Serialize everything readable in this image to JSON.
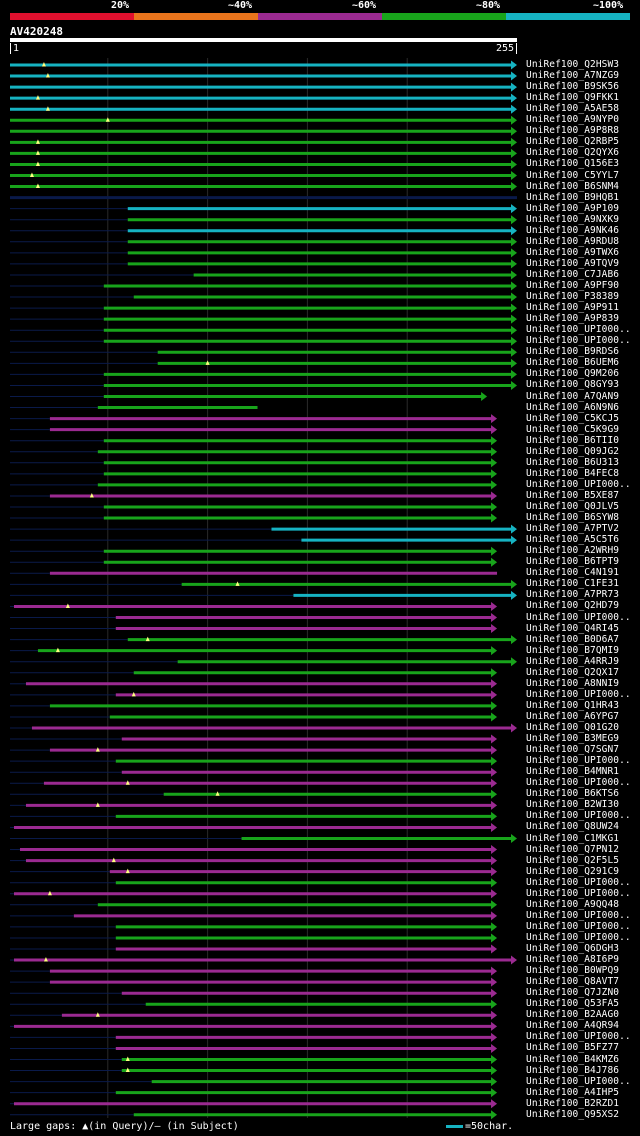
{
  "legend": [
    {
      "label": "20%",
      "color": "#e0102e"
    },
    {
      "label": "~40%",
      "color": "#e8741c"
    },
    {
      "label": "~60%",
      "color": "#9b2a91"
    },
    {
      "label": "~80%",
      "color": "#18a41b"
    },
    {
      "label": "~100%",
      "color": "#16b3c2"
    }
  ],
  "query": {
    "name": "AV420248",
    "start_label": "1",
    "end_label": "255"
  },
  "footer": {
    "text": "Large gaps: ▲(in Query)/— (in Subject)",
    "scale_text": "=50char."
  },
  "chart_data": {
    "type": "alignment",
    "query_length": 255,
    "x_range": [
      1,
      255
    ],
    "grid_positions": [
      50,
      100,
      150,
      200
    ],
    "colors": {
      "purple": "#9b2a91",
      "green": "#18a41b",
      "cyan": "#16b3c2",
      "navy": "#0a1a4a"
    },
    "hits": [
      {
        "name": "UniRef100_Q2HSW3",
        "color": "cyan",
        "start": 1,
        "end": 255,
        "arrow": true,
        "gap": 18
      },
      {
        "name": "UniRef100_A7NZG9",
        "color": "cyan",
        "start": 1,
        "end": 255,
        "arrow": true,
        "gap": 20
      },
      {
        "name": "UniRef100_B9SK56",
        "color": "cyan",
        "start": 1,
        "end": 255,
        "arrow": true
      },
      {
        "name": "UniRef100_Q9FKK1",
        "color": "cyan",
        "start": 1,
        "end": 255,
        "arrow": true,
        "gap": 15
      },
      {
        "name": "UniRef100_A5AE58",
        "color": "cyan",
        "start": 1,
        "end": 255,
        "arrow": true,
        "gap": 20
      },
      {
        "name": "UniRef100_A9NYP0",
        "color": "green",
        "start": 1,
        "end": 255,
        "arrow": true,
        "gap": 50
      },
      {
        "name": "UniRef100_A9P8R8",
        "color": "green",
        "start": 1,
        "end": 255,
        "arrow": true
      },
      {
        "name": "UniRef100_Q2RBP5",
        "color": "green",
        "start": 1,
        "end": 255,
        "arrow": true,
        "gap": 15
      },
      {
        "name": "UniRef100_Q2QYX6",
        "color": "green",
        "start": 1,
        "end": 255,
        "arrow": true,
        "gap": 15
      },
      {
        "name": "UniRef100_Q156E3",
        "color": "green",
        "start": 1,
        "end": 255,
        "arrow": true,
        "gap": 15
      },
      {
        "name": "UniRef100_C5YYL7",
        "color": "green",
        "start": 1,
        "end": 255,
        "arrow": true,
        "gap": 12
      },
      {
        "name": "UniRef100_B6SNM4",
        "color": "green",
        "start": 1,
        "end": 255,
        "arrow": true,
        "gap": 15
      },
      {
        "name": "UniRef100_B9HQB1",
        "color": "navy",
        "start": 1,
        "end": 255
      },
      {
        "name": "UniRef100_A9P109",
        "color": "cyan",
        "start": 60,
        "end": 255,
        "arrow": true
      },
      {
        "name": "UniRef100_A9NXK9",
        "color": "green",
        "start": 60,
        "end": 255,
        "arrow": true
      },
      {
        "name": "UniRef100_A9NK46",
        "color": "cyan",
        "start": 60,
        "end": 255,
        "arrow": true
      },
      {
        "name": "UniRef100_A9RDU8",
        "color": "green",
        "start": 60,
        "end": 255,
        "arrow": true
      },
      {
        "name": "UniRef100_A9TWX6",
        "color": "green",
        "start": 60,
        "end": 255,
        "arrow": true
      },
      {
        "name": "UniRef100_A9TQV9",
        "color": "green",
        "start": 60,
        "end": 255,
        "arrow": true
      },
      {
        "name": "UniRef100_C7JAB6",
        "color": "green",
        "start": 93,
        "end": 255,
        "arrow": true
      },
      {
        "name": "UniRef100_A9PF90",
        "color": "green",
        "start": 48,
        "end": 255,
        "arrow": true
      },
      {
        "name": "UniRef100_P38389",
        "color": "green",
        "start": 63,
        "end": 255,
        "arrow": true
      },
      {
        "name": "UniRef100_A9P911",
        "color": "green",
        "start": 48,
        "end": 255,
        "arrow": true
      },
      {
        "name": "UniRef100_A9P839",
        "color": "green",
        "start": 48,
        "end": 255,
        "arrow": true
      },
      {
        "name": "UniRef100_UPI000..",
        "color": "green",
        "start": 48,
        "end": 255,
        "arrow": true
      },
      {
        "name": "UniRef100_UPI000..",
        "color": "green",
        "start": 48,
        "end": 255,
        "arrow": true
      },
      {
        "name": "UniRef100_B9RDS6",
        "color": "green",
        "start": 75,
        "end": 255,
        "arrow": true
      },
      {
        "name": "UniRef100_B6UEM6",
        "color": "green",
        "start": 75,
        "end": 255,
        "arrow": true,
        "gap": 100
      },
      {
        "name": "UniRef100_Q9M206",
        "color": "green",
        "start": 48,
        "end": 255,
        "arrow": true
      },
      {
        "name": "UniRef100_Q8GY93",
        "color": "green",
        "start": 48,
        "end": 255,
        "arrow": true
      },
      {
        "name": "UniRef100_A7QAN9",
        "color": "green",
        "start": 48,
        "end": 240,
        "arrow": true
      },
      {
        "name": "UniRef100_A6N9N6",
        "color": "green",
        "start": 45,
        "end": 125
      },
      {
        "name": "UniRef100_C5KCJ5",
        "color": "purple",
        "start": 21,
        "end": 245,
        "arrow": true
      },
      {
        "name": "UniRef100_C5K9G9",
        "color": "purple",
        "start": 21,
        "end": 245,
        "arrow": true
      },
      {
        "name": "UniRef100_B6TII0",
        "color": "green",
        "start": 48,
        "end": 245,
        "arrow": true
      },
      {
        "name": "UniRef100_Q09JG2",
        "color": "green",
        "start": 45,
        "end": 245,
        "arrow": true
      },
      {
        "name": "UniRef100_B6U313",
        "color": "green",
        "start": 48,
        "end": 245,
        "arrow": true
      },
      {
        "name": "UniRef100_B4FEC8",
        "color": "green",
        "start": 48,
        "end": 245,
        "arrow": true
      },
      {
        "name": "UniRef100_UPI000..",
        "color": "green",
        "start": 45,
        "end": 245,
        "arrow": true
      },
      {
        "name": "UniRef100_B5XE87",
        "color": "purple",
        "start": 21,
        "end": 245,
        "arrow": true,
        "gap": 42
      },
      {
        "name": "UniRef100_Q0JLV5",
        "color": "green",
        "start": 48,
        "end": 245,
        "arrow": true
      },
      {
        "name": "UniRef100_B6SYW8",
        "color": "green",
        "start": 48,
        "end": 245,
        "arrow": true
      },
      {
        "name": "UniRef100_A7PTV2",
        "color": "cyan",
        "start": 132,
        "end": 255,
        "arrow": true
      },
      {
        "name": "UniRef100_A5C5T6",
        "color": "cyan",
        "start": 147,
        "end": 255,
        "arrow": true
      },
      {
        "name": "UniRef100_A2WRH9",
        "color": "green",
        "start": 48,
        "end": 245,
        "arrow": true
      },
      {
        "name": "UniRef100_B6TPT9",
        "color": "green",
        "start": 48,
        "end": 245,
        "arrow": true
      },
      {
        "name": "UniRef100_C4N191",
        "color": "purple",
        "start": 21,
        "end": 245
      },
      {
        "name": "UniRef100_C1FE31",
        "color": "green",
        "start": 87,
        "end": 255,
        "arrow": true,
        "gap": 115
      },
      {
        "name": "UniRef100_A7PR73",
        "color": "cyan",
        "start": 143,
        "end": 255,
        "arrow": true
      },
      {
        "name": "UniRef100_Q2HD79",
        "color": "purple",
        "start": 3,
        "end": 245,
        "arrow": true,
        "gap": 30
      },
      {
        "name": "UniRef100_UPI000..",
        "color": "purple",
        "start": 54,
        "end": 245,
        "arrow": true
      },
      {
        "name": "UniRef100_Q4RI45",
        "color": "purple",
        "start": 54,
        "end": 245,
        "arrow": true
      },
      {
        "name": "UniRef100_B0D6A7",
        "color": "green",
        "start": 60,
        "end": 255,
        "arrow": true,
        "gap": 70
      },
      {
        "name": "UniRef100_B7QMI9",
        "color": "green",
        "start": 15,
        "end": 245,
        "arrow": true,
        "gap": 25
      },
      {
        "name": "UniRef100_A4RRJ9",
        "color": "green",
        "start": 85,
        "end": 255,
        "arrow": true
      },
      {
        "name": "UniRef100_Q2QX17",
        "color": "green",
        "start": 63,
        "end": 245,
        "arrow": true
      },
      {
        "name": "UniRef100_A8NNI9",
        "color": "purple",
        "start": 9,
        "end": 245,
        "arrow": true
      },
      {
        "name": "UniRef100_UPI000..",
        "color": "purple",
        "start": 54,
        "end": 245,
        "arrow": true,
        "gap": 63
      },
      {
        "name": "UniRef100_Q1HR43",
        "color": "green",
        "start": 21,
        "end": 245,
        "arrow": true
      },
      {
        "name": "UniRef100_A6YPG7",
        "color": "green",
        "start": 51,
        "end": 245,
        "arrow": true
      },
      {
        "name": "UniRef100_Q01G20",
        "color": "purple",
        "start": 12,
        "end": 255,
        "arrow": true
      },
      {
        "name": "UniRef100_B3MEG9",
        "color": "purple",
        "start": 57,
        "end": 245,
        "arrow": true
      },
      {
        "name": "UniRef100_Q7SGN7",
        "color": "purple",
        "start": 21,
        "end": 245,
        "arrow": true,
        "gap": 45
      },
      {
        "name": "UniRef100_UPI000..",
        "color": "green",
        "start": 54,
        "end": 245,
        "arrow": true
      },
      {
        "name": "UniRef100_B4MNR1",
        "color": "purple",
        "start": 57,
        "end": 245,
        "arrow": true
      },
      {
        "name": "UniRef100_UPI000..",
        "color": "purple",
        "start": 18,
        "end": 245,
        "arrow": true,
        "gap": 60
      },
      {
        "name": "UniRef100_B6KTS6",
        "color": "green",
        "start": 78,
        "end": 245,
        "arrow": true,
        "gap": 105
      },
      {
        "name": "UniRef100_B2WI30",
        "color": "purple",
        "start": 9,
        "end": 245,
        "arrow": true,
        "gap": 45
      },
      {
        "name": "UniRef100_UPI000..",
        "color": "green",
        "start": 54,
        "end": 245,
        "arrow": true
      },
      {
        "name": "UniRef100_Q8UW24",
        "color": "purple",
        "start": 3,
        "end": 245,
        "arrow": true
      },
      {
        "name": "UniRef100_C1MKG1",
        "color": "green",
        "start": 117,
        "end": 255,
        "arrow": true
      },
      {
        "name": "UniRef100_Q7PN12",
        "color": "purple",
        "start": 6,
        "end": 245,
        "arrow": true
      },
      {
        "name": "UniRef100_Q2F5L5",
        "color": "purple",
        "start": 9,
        "end": 245,
        "arrow": true,
        "gap": 53
      },
      {
        "name": "UniRef100_Q291C9",
        "color": "purple",
        "start": 51,
        "end": 245,
        "arrow": true,
        "gap": 60
      },
      {
        "name": "UniRef100_UPI000..",
        "color": "green",
        "start": 54,
        "end": 245,
        "arrow": true
      },
      {
        "name": "UniRef100_UPI000..",
        "color": "purple",
        "start": 3,
        "end": 245,
        "arrow": true,
        "gap": 21
      },
      {
        "name": "UniRef100_A9QQ48",
        "color": "green",
        "start": 45,
        "end": 245,
        "arrow": true
      },
      {
        "name": "UniRef100_UPI000..",
        "color": "purple",
        "start": 33,
        "end": 245,
        "arrow": true
      },
      {
        "name": "UniRef100_UPI000..",
        "color": "green",
        "start": 54,
        "end": 245,
        "arrow": true
      },
      {
        "name": "UniRef100_UPI000..",
        "color": "green",
        "start": 54,
        "end": 245,
        "arrow": true
      },
      {
        "name": "UniRef100_Q6DGH3",
        "color": "purple",
        "start": 54,
        "end": 245,
        "arrow": true
      },
      {
        "name": "UniRef100_A8I6P9",
        "color": "purple",
        "start": 3,
        "end": 255,
        "arrow": true,
        "gap": 19
      },
      {
        "name": "UniRef100_B0WPQ9",
        "color": "purple",
        "start": 21,
        "end": 245,
        "arrow": true
      },
      {
        "name": "UniRef100_Q8AVT7",
        "color": "purple",
        "start": 21,
        "end": 245,
        "arrow": true
      },
      {
        "name": "UniRef100_Q7JZN0",
        "color": "purple",
        "start": 57,
        "end": 245,
        "arrow": true
      },
      {
        "name": "UniRef100_Q53FA5",
        "color": "green",
        "start": 69,
        "end": 245,
        "arrow": true
      },
      {
        "name": "UniRef100_B2AAG0",
        "color": "purple",
        "start": 27,
        "end": 245,
        "arrow": true,
        "gap": 45
      },
      {
        "name": "UniRef100_A4QR94",
        "color": "purple",
        "start": 3,
        "end": 245,
        "arrow": true
      },
      {
        "name": "UniRef100_UPI000..",
        "color": "purple",
        "start": 54,
        "end": 245,
        "arrow": true
      },
      {
        "name": "UniRef100_B5FZ77",
        "color": "purple",
        "start": 54,
        "end": 245,
        "arrow": true
      },
      {
        "name": "UniRef100_B4KMZ6",
        "color": "green",
        "start": 57,
        "end": 245,
        "arrow": true,
        "gap": 60
      },
      {
        "name": "UniRef100_B4J786",
        "color": "green",
        "start": 57,
        "end": 245,
        "arrow": true,
        "gap": 60
      },
      {
        "name": "UniRef100_UPI000..",
        "color": "green",
        "start": 72,
        "end": 245,
        "arrow": true
      },
      {
        "name": "UniRef100_A4IHP5",
        "color": "green",
        "start": 54,
        "end": 245,
        "arrow": true
      },
      {
        "name": "UniRef100_B2RZD1",
        "color": "purple",
        "start": 3,
        "end": 245,
        "arrow": true
      },
      {
        "name": "UniRef100_Q95XS2",
        "color": "green",
        "start": 63,
        "end": 245,
        "arrow": true
      }
    ]
  }
}
